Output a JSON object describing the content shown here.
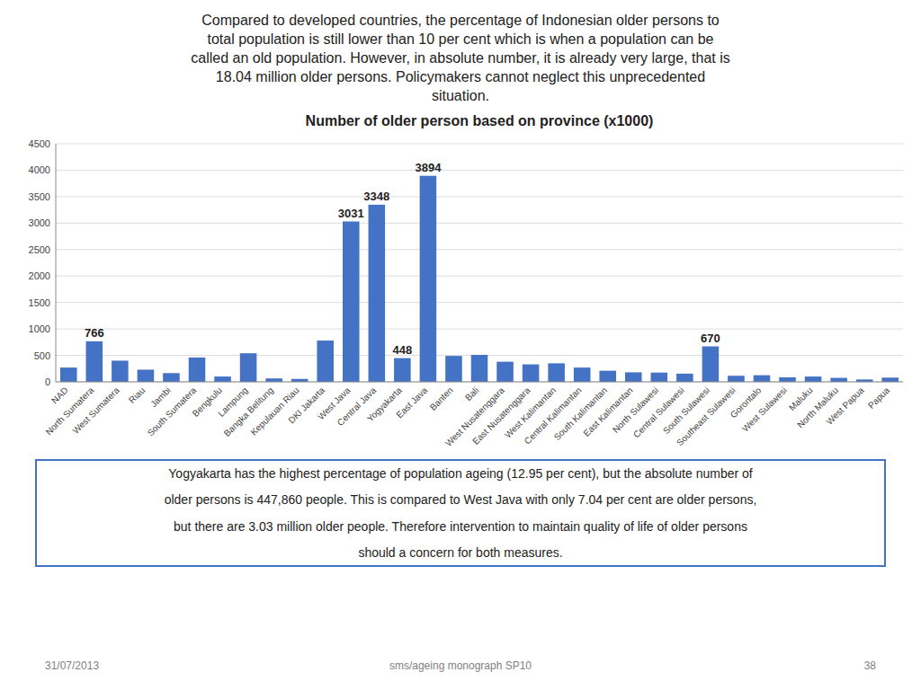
{
  "chart_data": {
    "type": "bar",
    "title": "Number of older person based on province (x1000)",
    "categories": [
      "NAD",
      "North Sumatera",
      "West Sumatera",
      "Riau",
      "Jambi",
      "South Sumatera",
      "Bengkulu",
      "Lampung",
      "Bangka Belitung",
      "Kepulauan Riau",
      "DKI Jakarta",
      "West Java",
      "Central Java",
      "Yogyakarta",
      "East Java",
      "Banten",
      "Bali",
      "West Nusatenggara",
      "East Nusatenggara",
      "West Kalimantan",
      "Central Kalimantan",
      "South Kalimantan",
      "East Kalimantan",
      "North Sulawesi",
      "Central Sulawesi",
      "South Sulawesi",
      "Southeast Sulawesi",
      "Gorontalo",
      "West Sulawesi",
      "Maluku",
      "North Maluku",
      "West Papua",
      "Papua"
    ],
    "values": [
      270,
      766,
      400,
      230,
      165,
      460,
      100,
      540,
      65,
      55,
      780,
      3031,
      3348,
      448,
      3894,
      490,
      510,
      380,
      330,
      350,
      270,
      210,
      180,
      175,
      155,
      670,
      115,
      125,
      85,
      100,
      75,
      45,
      80
    ],
    "data_labels": true,
    "value_labels": [
      null,
      "766",
      null,
      null,
      null,
      null,
      null,
      null,
      null,
      null,
      null,
      "3031",
      "3348",
      "448",
      "3894",
      null,
      null,
      null,
      null,
      null,
      null,
      null,
      null,
      null,
      null,
      "670",
      null,
      null,
      null,
      null,
      null,
      null,
      null
    ],
    "color": "#4472C4",
    "ylim": [
      0,
      4500
    ],
    "yticks": [
      0,
      500,
      1000,
      1500,
      2000,
      2500,
      3000,
      3500,
      4000,
      4500
    ],
    "grid": true
  },
  "header": [
    "Compared to developed countries, the percentage of Indonesian older persons to",
    "total population is still lower than 10 per cent which is when a population can be",
    "called an old population. However, in absolute number, it is already very large, that is",
    "18.04 million older persons. Policymakers cannot neglect this unprecedented",
    "situation."
  ],
  "note": {
    "lines": [
      "Yogyakarta has the highest percentage of population ageing (12.95 per cent), but the absolute number of",
      "older persons is 447,860 people. This is compared to West Java with only 7.04 per cent are older persons,",
      "but there are 3.03 million older people. Therefore intervention to maintain quality of life of older persons",
      "should a concern for both measures."
    ],
    "color": "#4472C4"
  },
  "footer": {
    "left": "31/07/2013",
    "center": "sms/ageing monograph SP10",
    "right": "38"
  }
}
